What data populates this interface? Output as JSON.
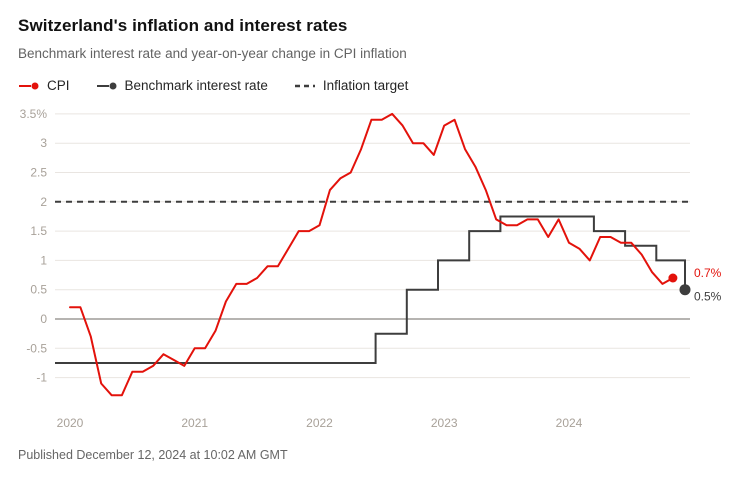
{
  "header": {
    "title": "Switzerland's inflation and interest rates",
    "subtitle": "Benchmark interest rate and year-on-year change in CPI inflation"
  },
  "legend": {
    "items": [
      {
        "label": "CPI",
        "color": "#e3120b"
      },
      {
        "label": "Benchmark interest rate",
        "color": "#3d3d3d"
      },
      {
        "label": "Inflation target",
        "color": "#3d3d3d"
      }
    ]
  },
  "chart_data": {
    "type": "line",
    "title": "Switzerland's inflation and interest rates",
    "subtitle": "Benchmark interest rate and year-on-year change in CPI inflation",
    "xlabel": "",
    "ylabel": "",
    "xlim": [
      2019.88,
      2024.97
    ],
    "ylim": [
      -1.45,
      3.55
    ],
    "grid": true,
    "grid_color": "#e9e5e1",
    "zero_line_color": "#6e6963",
    "legend_position": "top",
    "x_ticks": [
      {
        "v": 2020,
        "label": "2020"
      },
      {
        "v": 2021,
        "label": "2021"
      },
      {
        "v": 2022,
        "label": "2022"
      },
      {
        "v": 2023,
        "label": "2023"
      },
      {
        "v": 2024,
        "label": "2024"
      }
    ],
    "y_ticks": [
      {
        "v": -1,
        "label": "-1"
      },
      {
        "v": -0.5,
        "label": "-0.5"
      },
      {
        "v": 0,
        "label": "0"
      },
      {
        "v": 0.5,
        "label": "0.5"
      },
      {
        "v": 1,
        "label": "1"
      },
      {
        "v": 1.5,
        "label": "1.5"
      },
      {
        "v": 2,
        "label": "2"
      },
      {
        "v": 2.5,
        "label": "2.5"
      },
      {
        "v": 3,
        "label": "3"
      },
      {
        "v": 3.5,
        "label": "3.5%"
      }
    ],
    "series": [
      {
        "name": "CPI",
        "style": "line",
        "color": "#e3120b",
        "x_start": 2020.0,
        "x_step": 0.08333,
        "values": [
          0.2,
          0.2,
          -0.3,
          -1.1,
          -1.3,
          -1.3,
          -0.9,
          -0.9,
          -0.8,
          -0.6,
          -0.7,
          -0.8,
          -0.5,
          -0.5,
          -0.2,
          0.3,
          0.6,
          0.6,
          0.7,
          0.9,
          0.9,
          1.2,
          1.5,
          1.5,
          1.6,
          2.2,
          2.4,
          2.5,
          2.9,
          3.4,
          3.4,
          3.5,
          3.3,
          3.0,
          3.0,
          2.8,
          3.3,
          3.4,
          2.9,
          2.6,
          2.2,
          1.7,
          1.6,
          1.6,
          1.7,
          1.7,
          1.4,
          1.7,
          1.3,
          1.2,
          1.0,
          1.4,
          1.4,
          1.3,
          1.3,
          1.1,
          0.8,
          0.6,
          0.7
        ],
        "end_label": "0.7%"
      },
      {
        "name": "Benchmark interest rate",
        "style": "step",
        "color": "#3d3d3d",
        "points": [
          [
            2019.88,
            -0.75
          ],
          [
            2022.45,
            -0.25
          ],
          [
            2022.7,
            0.5
          ],
          [
            2022.95,
            1.0
          ],
          [
            2023.2,
            1.5
          ],
          [
            2023.45,
            1.75
          ],
          [
            2024.2,
            1.5
          ],
          [
            2024.45,
            1.25
          ],
          [
            2024.7,
            1.0
          ],
          [
            2024.93,
            0.5
          ]
        ],
        "end_label": "0.5%"
      },
      {
        "name": "Inflation target",
        "style": "dashed-horizontal",
        "color": "#3d3d3d",
        "value": 2
      }
    ]
  },
  "footer": {
    "published": "Published December 12, 2024 at 10:02 AM GMT"
  }
}
